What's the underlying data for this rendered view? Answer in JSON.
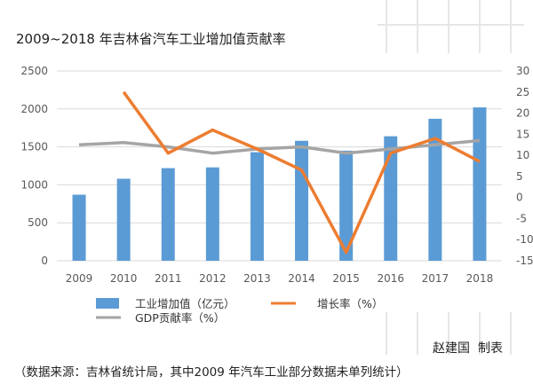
{
  "chart_data": {
    "type": "bar",
    "title": "2009~2018 年吉林省汽车工业增加值贡献率",
    "categories": [
      "2009",
      "2010",
      "2011",
      "2012",
      "2013",
      "2014",
      "2015",
      "2016",
      "2017",
      "2018"
    ],
    "series": [
      {
        "name": "工业增加值（亿元）",
        "type": "bar",
        "axis": "left",
        "color": "#5b9bd5",
        "values": [
          870,
          1080,
          1220,
          1230,
          1430,
          1580,
          1450,
          1640,
          1870,
          2020
        ]
      },
      {
        "name": "增长率（%）",
        "type": "line",
        "axis": "right",
        "color": "#ed7d31",
        "values": [
          null,
          25,
          10.5,
          16,
          11.5,
          6.5,
          -13,
          10.5,
          14,
          8.5
        ]
      },
      {
        "name": "GDP贡献率（%）",
        "type": "line",
        "axis": "right",
        "color": "#a5a5a5",
        "values": [
          12.5,
          13,
          12,
          10.5,
          11.5,
          12,
          10.5,
          11.5,
          12.5,
          13.5
        ]
      }
    ],
    "y_left": {
      "min": 0,
      "max": 2500,
      "ticks": [
        "0",
        "500",
        "1000",
        "1500",
        "2000",
        "2500"
      ]
    },
    "y_right": {
      "min": -15,
      "max": 30,
      "ticks": [
        "-15",
        "-10",
        "-5",
        "0",
        "5",
        "10",
        "15",
        "20",
        "25",
        "30"
      ]
    },
    "grid": true,
    "legend_position": "bottom"
  },
  "footer": {
    "author": "赵建国",
    "author_suffix": "制表",
    "source": "（数据来源：吉林省统计局，其中2009 年汽车工业部分数据未单列统计）"
  }
}
